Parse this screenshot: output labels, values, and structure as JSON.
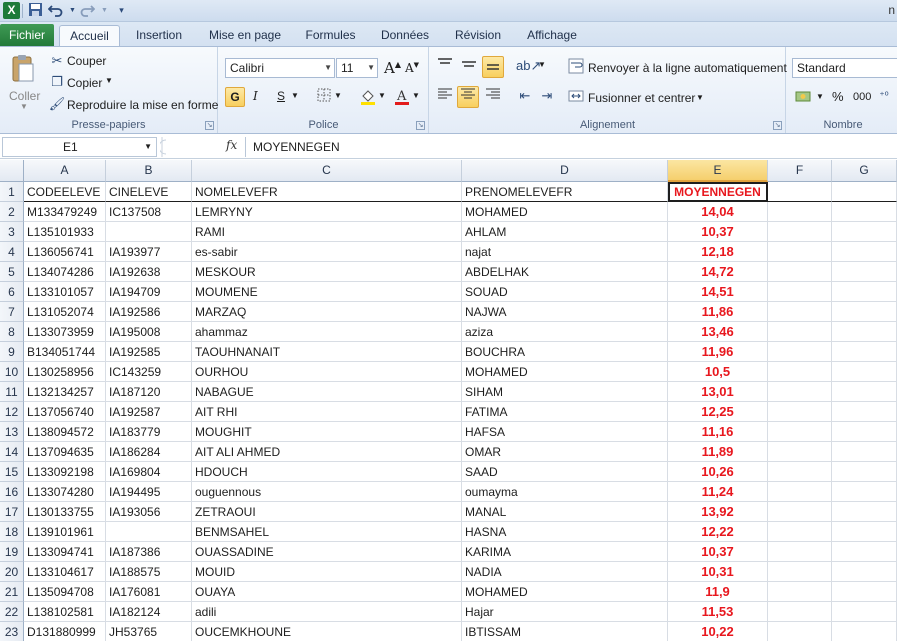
{
  "quick_access": {
    "app_icon": "X",
    "save_icon": "save-icon",
    "undo_icon": "undo-icon",
    "redo_icon": "redo-icon"
  },
  "title": "n",
  "tabs": [
    "Fichier",
    "Accueil",
    "Insertion",
    "Mise en page",
    "Formules",
    "Données",
    "Révision",
    "Affichage"
  ],
  "ribbon": {
    "clipboard": {
      "paste": "Coller",
      "cut": "Couper",
      "copy": "Copier",
      "format_painter": "Reproduire la mise en forme",
      "label": "Presse-papiers"
    },
    "font": {
      "name": "Calibri",
      "size": "11",
      "bold": "G",
      "italic": "I",
      "underline": "S",
      "label": "Police"
    },
    "alignment": {
      "wrap": "Renvoyer à la ligne automatiquement",
      "merge": "Fusionner et centrer",
      "label": "Alignement"
    },
    "number": {
      "format": "Standard",
      "percent": "%",
      "thousands": "000",
      "label": "Nombre"
    }
  },
  "formula_bar": {
    "name_box": "E1",
    "fx": "fx",
    "content": "MOYENNEGEN"
  },
  "columns": [
    "A",
    "B",
    "C",
    "D",
    "E",
    "F",
    "G"
  ],
  "selected_column": "E",
  "rows": [
    {
      "n": "1",
      "a": "CODEELEVE",
      "b": "CINELEVE",
      "c": "NOMELEVEFR",
      "d": "PRENOMELEVEFR",
      "e": "MOYENNEGEN"
    },
    {
      "n": "2",
      "a": "M133479249",
      "b": "IC137508",
      "c": "LEMRYNY",
      "d": "MOHAMED",
      "e": "14,04"
    },
    {
      "n": "3",
      "a": "L135101933",
      "b": "",
      "c": "RAMI",
      "d": "AHLAM",
      "e": "10,37"
    },
    {
      "n": "4",
      "a": "L136056741",
      "b": "IA193977",
      "c": "es-sabir",
      "d": "najat",
      "e": "12,18"
    },
    {
      "n": "5",
      "a": "L134074286",
      "b": "IA192638",
      "c": "MESKOUR",
      "d": "ABDELHAK",
      "e": "14,72"
    },
    {
      "n": "6",
      "a": "L133101057",
      "b": "IA194709",
      "c": "MOUMENE",
      "d": "SOUAD",
      "e": "14,51"
    },
    {
      "n": "7",
      "a": "L131052074",
      "b": "IA192586",
      "c": "MARZAQ",
      "d": "NAJWA",
      "e": "11,86"
    },
    {
      "n": "8",
      "a": "L133073959",
      "b": "IA195008",
      "c": "ahammaz",
      "d": "aziza",
      "e": "13,46"
    },
    {
      "n": "9",
      "a": "B134051744",
      "b": "IA192585",
      "c": "TAOUHNANAIT",
      "d": "BOUCHRA",
      "e": "11,96"
    },
    {
      "n": "10",
      "a": "L130258956",
      "b": "IC143259",
      "c": "OURHOU",
      "d": "MOHAMED",
      "e": "10,5"
    },
    {
      "n": "11",
      "a": "L132134257",
      "b": "IA187120",
      "c": "NABAGUE",
      "d": "SIHAM",
      "e": "13,01"
    },
    {
      "n": "12",
      "a": "L137056740",
      "b": "IA192587",
      "c": "AIT RHI",
      "d": "FATIMA",
      "e": "12,25"
    },
    {
      "n": "13",
      "a": "L138094572",
      "b": "IA183779",
      "c": "MOUGHIT",
      "d": "HAFSA",
      "e": "11,16"
    },
    {
      "n": "14",
      "a": "L137094635",
      "b": "IA186284",
      "c": "AIT ALI AHMED",
      "d": "OMAR",
      "e": "11,89"
    },
    {
      "n": "15",
      "a": "L133092198",
      "b": "IA169804",
      "c": "HDOUCH",
      "d": "SAAD",
      "e": "10,26"
    },
    {
      "n": "16",
      "a": "L133074280",
      "b": "IA194495",
      "c": "ouguennous",
      "d": "oumayma",
      "e": "11,24"
    },
    {
      "n": "17",
      "a": "L130133755",
      "b": "IA193056",
      "c": "ZETRAOUI",
      "d": "MANAL",
      "e": "13,92"
    },
    {
      "n": "18",
      "a": "L139101961",
      "b": "",
      "c": "BENMSAHEL",
      "d": "HASNA",
      "e": "12,22"
    },
    {
      "n": "19",
      "a": "L133094741",
      "b": "IA187386",
      "c": "OUASSADINE",
      "d": "KARIMA",
      "e": "10,37"
    },
    {
      "n": "20",
      "a": "L133104617",
      "b": "IA188575",
      "c": "MOUID",
      "d": "NADIA",
      "e": "10,31"
    },
    {
      "n": "21",
      "a": "L135094708",
      "b": "IA176081",
      "c": "OUAYA",
      "d": "MOHAMED",
      "e": "11,9"
    },
    {
      "n": "22",
      "a": "L138102581",
      "b": "IA182124",
      "c": "adili",
      "d": "Hajar",
      "e": "11,53"
    },
    {
      "n": "23",
      "a": "D131880999",
      "b": "JH53765",
      "c": "OUCEMKHOUNE",
      "d": "IBTISSAM",
      "e": "10,22"
    }
  ]
}
